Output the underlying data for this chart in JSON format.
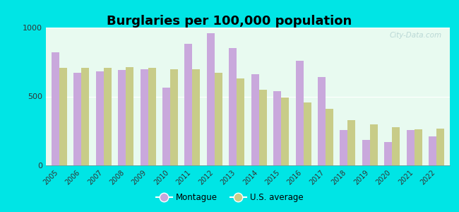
{
  "title": "Burglaries per 100,000 population",
  "years": [
    2005,
    2006,
    2007,
    2008,
    2009,
    2010,
    2011,
    2012,
    2013,
    2014,
    2015,
    2016,
    2017,
    2018,
    2019,
    2020,
    2021,
    2022
  ],
  "montague": [
    820,
    670,
    680,
    690,
    700,
    565,
    880,
    960,
    850,
    660,
    540,
    760,
    640,
    255,
    185,
    170,
    255,
    210
  ],
  "us_average": [
    710,
    710,
    710,
    715,
    710,
    695,
    695,
    670,
    630,
    550,
    490,
    455,
    410,
    330,
    300,
    275,
    260,
    265
  ],
  "montague_color": "#c9a8dc",
  "us_avg_color": "#c8cc88",
  "background_color": "#e8faf0",
  "outer_background": "#00e5e5",
  "ylim": [
    0,
    1000
  ],
  "yticks": [
    0,
    500,
    1000
  ],
  "bar_width": 0.35,
  "legend_montague": "Montague",
  "legend_us": "U.S. average",
  "title_fontsize": 13,
  "watermark": "City-Data.com"
}
